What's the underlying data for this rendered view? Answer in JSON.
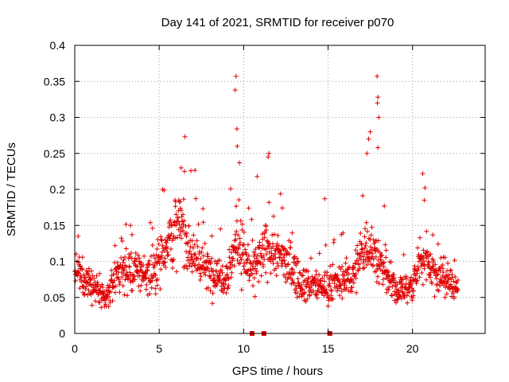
{
  "chart_data": {
    "type": "scatter",
    "title": "Day 141 of 2021, SRMTID for receiver p070",
    "xlabel": "GPS time / hours",
    "ylabel": "SRMTID / TECUs",
    "xlim": [
      0,
      24.3
    ],
    "ylim": [
      0,
      0.4
    ],
    "x_ticks": [
      0,
      5,
      10,
      15,
      20
    ],
    "x_tick_labels": [
      "0",
      "5",
      "10",
      "15",
      "20"
    ],
    "y_ticks": [
      0,
      0.05,
      0.1,
      0.15,
      0.2,
      0.25,
      0.3,
      0.35,
      0.4
    ],
    "y_tick_labels": [
      "0",
      "0.05",
      "0.1",
      "0.15",
      "0.2",
      "0.25",
      "0.3",
      "0.35",
      "0.4"
    ],
    "grid": true,
    "marker": "+",
    "color": "#e00000",
    "series": [
      {
        "name": "SRMTID",
        "x_range": [
          0,
          22.7
        ],
        "baseline_profile": [
          {
            "x": 0.0,
            "y": 0.085
          },
          {
            "x": 1.0,
            "y": 0.07
          },
          {
            "x": 1.8,
            "y": 0.045
          },
          {
            "x": 2.5,
            "y": 0.085
          },
          {
            "x": 3.5,
            "y": 0.09
          },
          {
            "x": 4.5,
            "y": 0.08
          },
          {
            "x": 5.5,
            "y": 0.13
          },
          {
            "x": 6.3,
            "y": 0.15
          },
          {
            "x": 7.0,
            "y": 0.11
          },
          {
            "x": 8.0,
            "y": 0.085
          },
          {
            "x": 9.0,
            "y": 0.08
          },
          {
            "x": 9.6,
            "y": 0.13
          },
          {
            "x": 10.5,
            "y": 0.085
          },
          {
            "x": 11.5,
            "y": 0.12
          },
          {
            "x": 12.5,
            "y": 0.1
          },
          {
            "x": 13.5,
            "y": 0.07
          },
          {
            "x": 14.5,
            "y": 0.065
          },
          {
            "x": 15.5,
            "y": 0.07
          },
          {
            "x": 16.5,
            "y": 0.08
          },
          {
            "x": 17.3,
            "y": 0.13
          },
          {
            "x": 18.0,
            "y": 0.1
          },
          {
            "x": 19.0,
            "y": 0.06
          },
          {
            "x": 20.0,
            "y": 0.065
          },
          {
            "x": 20.6,
            "y": 0.11
          },
          {
            "x": 21.5,
            "y": 0.08
          },
          {
            "x": 22.7,
            "y": 0.065
          }
        ],
        "spikes": [
          {
            "x": 9.55,
            "y": 0.357
          },
          {
            "x": 9.5,
            "y": 0.338
          },
          {
            "x": 9.6,
            "y": 0.284
          },
          {
            "x": 9.62,
            "y": 0.26
          },
          {
            "x": 9.75,
            "y": 0.237
          },
          {
            "x": 10.8,
            "y": 0.218
          },
          {
            "x": 11.5,
            "y": 0.25
          },
          {
            "x": 11.45,
            "y": 0.245
          },
          {
            "x": 6.3,
            "y": 0.23
          },
          {
            "x": 6.5,
            "y": 0.225
          },
          {
            "x": 5.2,
            "y": 0.2
          },
          {
            "x": 14.8,
            "y": 0.187
          },
          {
            "x": 17.9,
            "y": 0.357
          },
          {
            "x": 17.95,
            "y": 0.328
          },
          {
            "x": 17.92,
            "y": 0.32
          },
          {
            "x": 18.0,
            "y": 0.3
          },
          {
            "x": 17.5,
            "y": 0.28
          },
          {
            "x": 17.4,
            "y": 0.27
          },
          {
            "x": 17.3,
            "y": 0.25
          },
          {
            "x": 17.95,
            "y": 0.258
          },
          {
            "x": 20.6,
            "y": 0.222
          },
          {
            "x": 20.7,
            "y": 0.185
          },
          {
            "x": 0.2,
            "y": 0.135
          },
          {
            "x": 3.3,
            "y": 0.15
          }
        ],
        "zero_values_at_x": [
          10.5,
          11.2,
          15.1
        ]
      }
    ]
  }
}
